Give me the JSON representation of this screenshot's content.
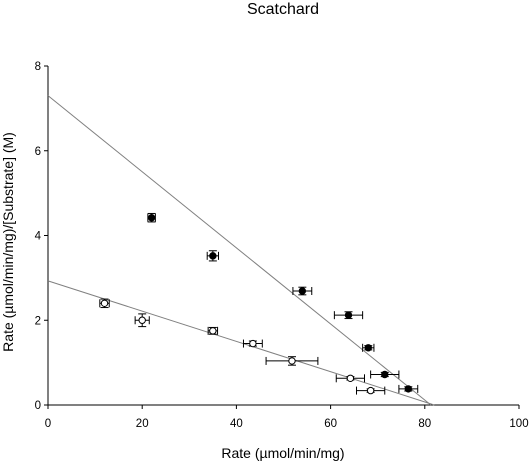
{
  "chart_data": {
    "type": "scatter",
    "title": "Scatchard",
    "xlabel": "Rate (µmol/min/mg)",
    "ylabel": "Rate (µmol/min/mg)/[Substrate] (M)",
    "xlim": [
      0,
      100
    ],
    "ylim": [
      0,
      8
    ],
    "x_ticks": [
      "0",
      "20",
      "40",
      "60",
      "80",
      "100"
    ],
    "y_ticks": [
      "0",
      "2",
      "4",
      "6",
      "8"
    ],
    "grid": false,
    "series": [
      {
        "marker": "filled-circle",
        "color": "#000000",
        "points": [
          {
            "x": 22.0,
            "y": 4.42,
            "xerr": 0.8,
            "yerr": 0.1
          },
          {
            "x": 35.0,
            "y": 3.52,
            "xerr": 1.2,
            "yerr": 0.12
          },
          {
            "x": 54.0,
            "y": 2.69,
            "xerr": 2.0,
            "yerr": 0.09
          },
          {
            "x": 63.8,
            "y": 2.12,
            "xerr": 3.0,
            "yerr": 0.08
          },
          {
            "x": 68.0,
            "y": 1.35,
            "xerr": 1.2,
            "yerr": 0.05
          },
          {
            "x": 71.5,
            "y": 0.72,
            "xerr": 3.0,
            "yerr": 0.05
          },
          {
            "x": 76.5,
            "y": 0.38,
            "xerr": 2.0,
            "yerr": 0.05
          }
        ],
        "fit": {
          "x0": 0,
          "y0": 7.3,
          "x1": 81.3,
          "y1": 0
        }
      },
      {
        "marker": "open-circle",
        "color": "#000000",
        "points": [
          {
            "x": 12.0,
            "y": 2.4,
            "xerr": 1.0,
            "yerr": 0.1
          },
          {
            "x": 20.0,
            "y": 2.0,
            "xerr": 1.5,
            "yerr": 0.15
          },
          {
            "x": 35.0,
            "y": 1.75,
            "xerr": 1.0,
            "yerr": 0.08
          },
          {
            "x": 43.5,
            "y": 1.45,
            "xerr": 2.0,
            "yerr": 0.06
          },
          {
            "x": 51.8,
            "y": 1.04,
            "xerr": 5.5,
            "yerr": 0.1
          },
          {
            "x": 64.2,
            "y": 0.63,
            "xerr": 3.0,
            "yerr": 0.04
          },
          {
            "x": 68.5,
            "y": 0.34,
            "xerr": 3.0,
            "yerr": 0.04
          }
        ],
        "fit": {
          "x0": 0,
          "y0": 2.93,
          "x1": 82.0,
          "y1": 0
        }
      }
    ]
  }
}
